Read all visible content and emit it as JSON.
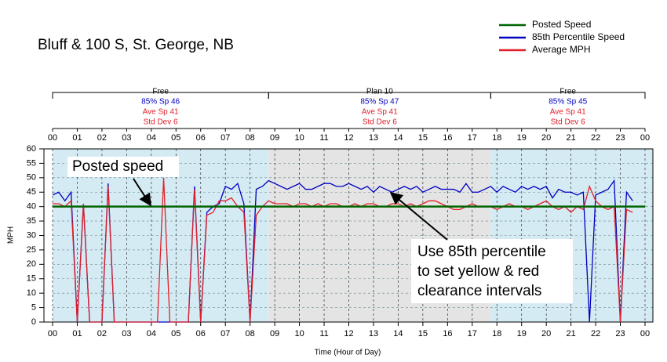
{
  "chart_data": {
    "type": "line",
    "title": "Bluff & 100 S, St. George, NB",
    "x_label": "Time (Hour of Day)",
    "y_label": "MPH",
    "xlim": [
      0,
      24
    ],
    "ylim": [
      0,
      60
    ],
    "yticks": [
      0,
      5,
      10,
      15,
      20,
      25,
      30,
      35,
      40,
      45,
      50,
      55,
      60
    ],
    "xticks": [
      {
        "value": 0,
        "label": "00"
      },
      {
        "value": 1,
        "label": "01"
      },
      {
        "value": 2,
        "label": "02"
      },
      {
        "value": 3,
        "label": "03"
      },
      {
        "value": 4,
        "label": "04"
      },
      {
        "value": 5,
        "label": "05"
      },
      {
        "value": 6,
        "label": "06"
      },
      {
        "value": 7,
        "label": "07"
      },
      {
        "value": 8,
        "label": "08"
      },
      {
        "value": 9,
        "label": "09"
      },
      {
        "value": 10,
        "label": "10"
      },
      {
        "value": 11,
        "label": "11"
      },
      {
        "value": 12,
        "label": "12"
      },
      {
        "value": 13,
        "label": "13"
      },
      {
        "value": 14,
        "label": "14"
      },
      {
        "value": 15,
        "label": "15"
      },
      {
        "value": 16,
        "label": "16"
      },
      {
        "value": 17,
        "label": "17"
      },
      {
        "value": 18,
        "label": "18"
      },
      {
        "value": 19,
        "label": "19"
      },
      {
        "value": 20,
        "label": "20"
      },
      {
        "value": 21,
        "label": "21"
      },
      {
        "value": 22,
        "label": "22"
      },
      {
        "value": 23,
        "label": "23"
      },
      {
        "value": 24,
        "label": "00"
      }
    ],
    "grid": true,
    "legend": "top-right",
    "plans": [
      {
        "start": 0,
        "end": 8.75,
        "name": "Free",
        "sp85": "85% Sp 46",
        "ave": "Ave Sp 41",
        "std": "Std Dev 6",
        "color": "#d5ebf3"
      },
      {
        "start": 8.75,
        "end": 17.75,
        "name": "Plan 10",
        "sp85": "85% Sp 47",
        "ave": "Ave Sp 41",
        "std": "Std Dev 6",
        "color": "#e4e4e4"
      },
      {
        "start": 17.75,
        "end": 24,
        "name": "Free",
        "sp85": "85% Sp 45",
        "ave": "Ave Sp 41",
        "std": "Std Dev 6",
        "color": "#d5ebf3"
      }
    ],
    "annotations": [
      {
        "lines": [
          "Posted speed"
        ]
      },
      {
        "lines": [
          "Use 85th percentile",
          "to set yellow & red",
          "clearance intervals"
        ]
      }
    ],
    "x": [
      0,
      0.25,
      0.5,
      0.75,
      1,
      1.25,
      1.5,
      1.75,
      2,
      2.25,
      2.5,
      2.75,
      3,
      3.25,
      3.5,
      3.75,
      4,
      4.25,
      4.5,
      4.75,
      5,
      5.25,
      5.5,
      5.75,
      6,
      6.25,
      6.5,
      6.75,
      7,
      7.25,
      7.5,
      7.75,
      8,
      8.25,
      8.5,
      8.75,
      9,
      9.25,
      9.5,
      9.75,
      10,
      10.25,
      10.5,
      10.75,
      11,
      11.25,
      11.5,
      11.75,
      12,
      12.25,
      12.5,
      12.75,
      13,
      13.25,
      13.5,
      13.75,
      14,
      14.25,
      14.5,
      14.75,
      15,
      15.25,
      15.5,
      15.75,
      16,
      16.25,
      16.5,
      16.75,
      17,
      17.25,
      17.5,
      17.75,
      18,
      18.25,
      18.5,
      18.75,
      19,
      19.25,
      19.5,
      19.75,
      20,
      20.25,
      20.5,
      20.75,
      21,
      21.25,
      21.5,
      21.75,
      22,
      22.25,
      22.5,
      22.75,
      23,
      23.25,
      23.5
    ],
    "series": [
      {
        "name": "Posted Speed",
        "color": "#006400",
        "x": [
          0,
          24
        ],
        "values": [
          40,
          40
        ]
      },
      {
        "name": "85th Percentile Speed",
        "color": "#0000c0",
        "values": [
          44,
          45,
          42,
          45,
          0,
          41,
          0,
          0,
          0,
          48,
          0,
          0,
          0,
          0,
          0,
          0,
          0,
          0,
          0,
          0,
          0,
          0,
          0,
          47,
          0,
          38,
          40,
          41,
          47,
          46,
          48,
          41,
          0,
          46,
          47,
          49,
          48,
          47,
          46,
          47,
          48,
          46,
          46,
          47,
          48,
          48,
          47,
          47,
          48,
          47,
          46,
          47,
          45,
          47,
          46,
          45,
          46,
          47,
          46,
          47,
          45,
          46,
          47,
          46,
          46,
          46,
          45,
          48,
          45,
          45,
          46,
          47,
          45,
          47,
          46,
          45,
          47,
          46,
          47,
          46,
          47,
          43,
          46,
          45,
          45,
          44,
          45,
          0,
          44,
          45,
          46,
          49,
          0,
          45,
          42
        ]
      },
      {
        "name": "Average MPH",
        "color": "#e0202a",
        "values": [
          41,
          41,
          40,
          42,
          0,
          41,
          0,
          0,
          0,
          47,
          0,
          0,
          0,
          0,
          0,
          0,
          0,
          0,
          50,
          0,
          0,
          0,
          0,
          46,
          0,
          37,
          38,
          42,
          42,
          43,
          40,
          38,
          0,
          37,
          40,
          42,
          41,
          41,
          41,
          40,
          41,
          41,
          40,
          41,
          40,
          41,
          41,
          40,
          40,
          41,
          40,
          41,
          41,
          40,
          40,
          41,
          41,
          40,
          41,
          40,
          41,
          42,
          42,
          41,
          40,
          39,
          39,
          40,
          41,
          40,
          40,
          40,
          39,
          40,
          41,
          40,
          40,
          39,
          40,
          41,
          42,
          40,
          39,
          40,
          38,
          40,
          39,
          47,
          42,
          40,
          39,
          40,
          0,
          39,
          38
        ]
      }
    ]
  }
}
